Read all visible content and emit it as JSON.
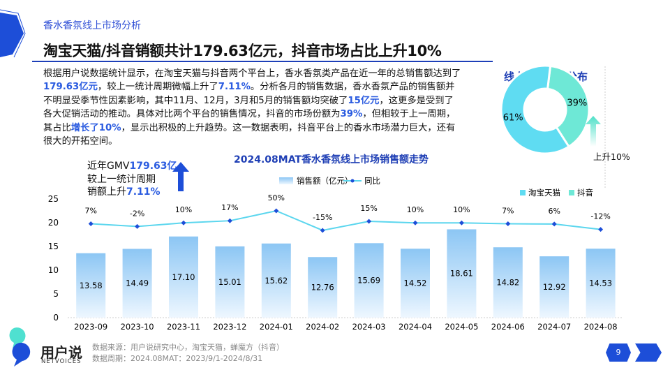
{
  "header": {
    "section": "香水香氛线上市场分析",
    "title": "淘宝天猫/抖音销额共计179.63亿元，抖音市场占比上升10%"
  },
  "paragraph": [
    {
      "t": "根据用户说数据统计显示，在淘宝天猫与抖音两个平台上，香水香氛类产品在近一年的总销售额达到了"
    },
    {
      "t": "179.63亿元",
      "hl": true
    },
    {
      "t": "，较上一统计周期微幅上升了"
    },
    {
      "t": "7.11%",
      "hl": true
    },
    {
      "t": "。分析各月的销售数据，香水香氛产品的销售额并不明显受季节性因素影响，其中11月、12月，3月和5月的销售额均突破了"
    },
    {
      "t": "15亿元",
      "hl": true
    },
    {
      "t": "，这更多是受到了各大促销活动的推动。具体对比两个平台的销售情况，抖音的市场份额为"
    },
    {
      "t": "39%",
      "hl": true
    },
    {
      "t": "，但相较于上一周期，其占比"
    },
    {
      "t": "增长了10%",
      "hl": true
    },
    {
      "t": "，显示出积极的上升趋势。这一数据表明，抖音平台上的香水市场潜力巨大，还有很大的开拓空间。"
    }
  ],
  "gmv_note": {
    "line1_prefix": "近年GMV",
    "line1_value": "179.63亿",
    "line2": "较上一统计周期",
    "line3_prefix": "销额上升",
    "line3_value": "7.11%"
  },
  "colors": {
    "accent": "#2a5be0",
    "title_blue": "#1f3fb5",
    "bar": "#9ccdf5",
    "line": "#5bd6ee",
    "marker": "#1d4ed8",
    "tmall": "#5fdcf2",
    "douyin": "#6ee8d6"
  },
  "chart_data": [
    {
      "type": "bar+line",
      "title": "2024.08MAT香水香氛线上市场销售额走势",
      "categories": [
        "2023-09",
        "2023-10",
        "2023-11",
        "2023-12",
        "2024-01",
        "2024-02",
        "2024-03",
        "2024-04",
        "2024-05",
        "2024-06",
        "2024-07",
        "2024-08"
      ],
      "y_ticks": [
        "0",
        "5",
        "10",
        "15",
        "20",
        "25"
      ],
      "ylim": [
        0,
        25
      ],
      "legend": "top",
      "series": [
        {
          "name": "销售额（亿元）",
          "type": "bar",
          "values": [
            13.58,
            14.49,
            17.1,
            15.01,
            15.62,
            12.76,
            15.69,
            14.52,
            18.61,
            14.82,
            12.92,
            14.53
          ],
          "labels": [
            "13.58",
            "14.49",
            "17.10",
            "15.01",
            "15.62",
            "12.76",
            "15.69",
            "14.52",
            "18.61",
            "14.82",
            "12.92",
            "14.53"
          ]
        },
        {
          "name": "同比",
          "type": "line",
          "values": [
            7,
            -2,
            10,
            17,
            50,
            -15,
            15,
            10,
            10,
            7,
            6,
            -12
          ],
          "labels": [
            "7%",
            "-2%",
            "10%",
            "17%",
            "50%",
            "-15%",
            "15%",
            "10%",
            "10%",
            "7%",
            "6%",
            "-12%"
          ]
        }
      ]
    },
    {
      "type": "pie",
      "title": "线上市场规模分布",
      "slices": [
        {
          "name": "淘宝天猫",
          "value": 61,
          "label": "61%"
        },
        {
          "name": "抖音",
          "value": 39,
          "label": "39%"
        }
      ],
      "annotation": "上升10%"
    }
  ],
  "footer": {
    "brand": "用户说",
    "brand_en": "NETVOICES",
    "source": "数据来源：用户说研究中心，淘宝天猫，蝉魔方（抖音）",
    "period": "数据周期：2024.08MAT：2023/9/1-2024/8/31",
    "page": "9"
  }
}
